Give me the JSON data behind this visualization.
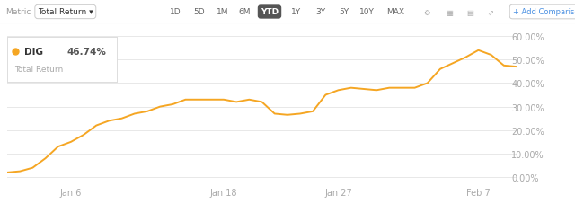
{
  "line_color": "#f5a623",
  "bg_color": "#ffffff",
  "grid_color": "#e8e8e8",
  "tick_label_color": "#aaaaaa",
  "ytick_labels": [
    "0.00%",
    "10.00%",
    "20.00%",
    "30.00%",
    "40.00%",
    "50.00%",
    "60.00%"
  ],
  "ytick_values": [
    0,
    10,
    20,
    30,
    40,
    50,
    60
  ],
  "xtick_labels": [
    "Jan 6",
    "Jan 18",
    "Jan 27",
    "Feb 7"
  ],
  "xtick_positions": [
    5,
    17,
    26,
    37
  ],
  "legend_ticker": "DIG",
  "legend_value": "46.74%",
  "legend_subtitle": "Total Return",
  "legend_dot_color": "#f5a623",
  "toolbar_bg": "#f9f9f9",
  "toolbar_border": "#e0e0e0",
  "ytd_bg": "#555555",
  "time_buttons": [
    "1D",
    "5D",
    "1M",
    "6M",
    "YTD",
    "1Y",
    "3Y",
    "5Y",
    "10Y",
    "MAX"
  ],
  "metric_label": "Metric",
  "metric_value": "Total Return ▾",
  "add_comparison": "+ Add Comparison",
  "x_values": [
    0,
    1,
    2,
    3,
    4,
    5,
    6,
    7,
    8,
    9,
    10,
    11,
    12,
    13,
    14,
    15,
    16,
    17,
    18,
    19,
    20,
    21,
    22,
    23,
    24,
    25,
    26,
    27,
    28,
    29,
    30,
    31,
    32,
    33,
    34,
    35,
    36,
    37,
    38,
    39,
    40
  ],
  "y_values": [
    2.0,
    2.5,
    4.0,
    8.0,
    13.0,
    15.0,
    18.0,
    22.0,
    24.0,
    25.0,
    27.0,
    28.0,
    30.0,
    31.0,
    33.0,
    33.0,
    33.0,
    33.0,
    32.0,
    33.0,
    32.0,
    27.0,
    26.5,
    27.0,
    28.0,
    35.0,
    37.0,
    38.0,
    37.5,
    37.0,
    38.0,
    38.0,
    38.0,
    40.0,
    46.0,
    48.5,
    51.0,
    54.0,
    52.0,
    47.5,
    47.0
  ]
}
